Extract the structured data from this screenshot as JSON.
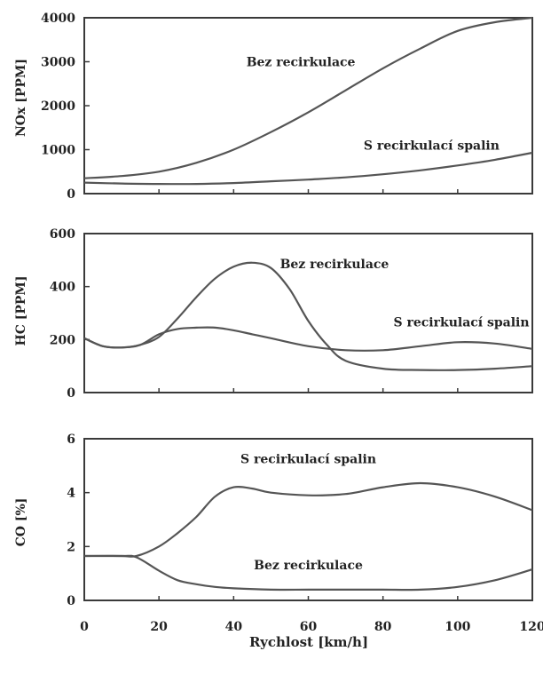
{
  "chart_data": [
    {
      "type": "line",
      "ylabel": "NOx [PPM]",
      "xlim": [
        0,
        120
      ],
      "ylim": [
        0,
        4000
      ],
      "yticks": [
        0,
        1000,
        2000,
        3000,
        4000
      ],
      "grid": false,
      "series": [
        {
          "name": "Bez recirkulace",
          "x": [
            0,
            10,
            20,
            30,
            40,
            50,
            60,
            70,
            80,
            90,
            100,
            110,
            120
          ],
          "y": [
            350,
            400,
            500,
            700,
            1000,
            1400,
            1850,
            2350,
            2850,
            3300,
            3700,
            3900,
            4000
          ]
        },
        {
          "name": "S recirkulací spalin",
          "x": [
            0,
            10,
            20,
            30,
            40,
            50,
            60,
            70,
            80,
            90,
            100,
            110,
            120
          ],
          "y": [
            250,
            230,
            220,
            220,
            240,
            280,
            320,
            370,
            440,
            530,
            640,
            770,
            930
          ]
        }
      ],
      "annotations": [
        {
          "text": "Bez recirkulace",
          "x": 58,
          "y": 2900
        },
        {
          "text": "S recirkulací spalin",
          "x": 93,
          "y": 1000
        }
      ]
    },
    {
      "type": "line",
      "ylabel": "HC [PPM]",
      "xlim": [
        0,
        120
      ],
      "ylim": [
        0,
        600
      ],
      "yticks": [
        0,
        200,
        400,
        600
      ],
      "grid": false,
      "series": [
        {
          "name": "Bez recirkulace",
          "x": [
            0,
            5,
            10,
            15,
            20,
            25,
            30,
            35,
            40,
            45,
            50,
            55,
            60,
            65,
            70,
            80,
            90,
            100,
            110,
            120
          ],
          "y": [
            205,
            175,
            170,
            180,
            210,
            280,
            360,
            430,
            475,
            490,
            470,
            390,
            270,
            180,
            120,
            90,
            85,
            85,
            90,
            100
          ]
        },
        {
          "name": "S recirkulací spalin",
          "x": [
            0,
            5,
            10,
            15,
            20,
            25,
            30,
            35,
            40,
            45,
            50,
            60,
            70,
            80,
            90,
            100,
            110,
            120
          ],
          "y": [
            205,
            175,
            170,
            180,
            220,
            240,
            245,
            245,
            235,
            220,
            205,
            175,
            160,
            160,
            175,
            190,
            185,
            165
          ]
        }
      ],
      "annotations": [
        {
          "text": "Bez recirkulace",
          "x": 67,
          "y": 470
        },
        {
          "text": "S recirkulací spalin",
          "x": 101,
          "y": 250
        }
      ]
    },
    {
      "type": "line",
      "ylabel": "CO [%]",
      "xlabel": "Rychlost [km/h]",
      "xlim": [
        0,
        120
      ],
      "ylim": [
        0,
        6
      ],
      "xticks": [
        0,
        20,
        40,
        60,
        80,
        100,
        120
      ],
      "yticks": [
        0,
        2,
        4,
        6
      ],
      "grid": false,
      "series": [
        {
          "name": "S recirkulací spalin",
          "x": [
            0,
            10,
            14,
            20,
            25,
            30,
            35,
            40,
            45,
            50,
            60,
            70,
            80,
            90,
            100,
            110,
            120
          ],
          "y": [
            1.65,
            1.65,
            1.65,
            2.0,
            2.5,
            3.1,
            3.85,
            4.2,
            4.15,
            4.0,
            3.9,
            3.95,
            4.2,
            4.35,
            4.2,
            3.85,
            3.35
          ]
        },
        {
          "name": "Bez recirkulace",
          "x": [
            0,
            10,
            14,
            20,
            25,
            30,
            35,
            40,
            50,
            60,
            70,
            80,
            90,
            100,
            110,
            120
          ],
          "y": [
            1.65,
            1.65,
            1.6,
            1.1,
            0.75,
            0.6,
            0.5,
            0.45,
            0.4,
            0.4,
            0.4,
            0.4,
            0.4,
            0.5,
            0.75,
            1.15
          ]
        }
      ],
      "annotations": [
        {
          "text": "S recirkulací spalin",
          "x": 60,
          "y": 5.1
        },
        {
          "text": "Bez recirkulace",
          "x": 60,
          "y": 1.15
        }
      ]
    }
  ]
}
